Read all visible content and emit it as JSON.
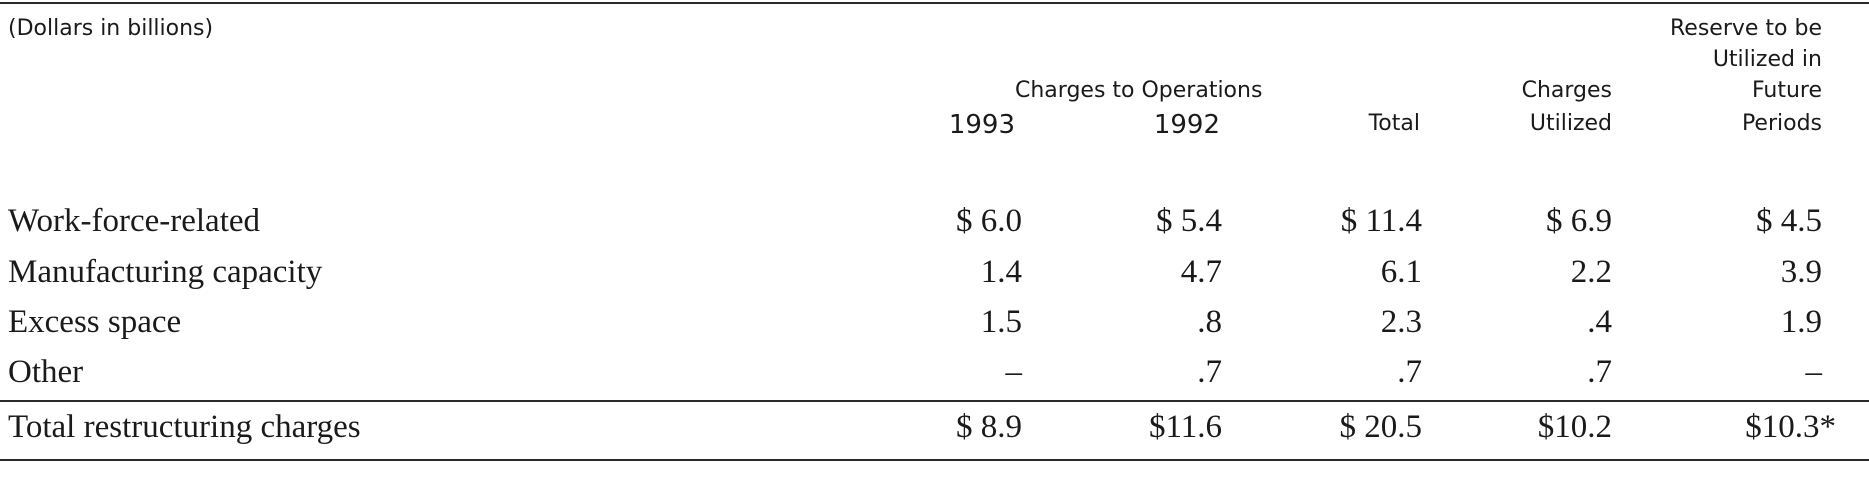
{
  "table": {
    "units_label": "(Dollars in billions)",
    "group_header": "Charges to Operations",
    "columns": {
      "c1993": "1993",
      "c1992": "1992",
      "total": "Total",
      "utilized_line1": "Charges",
      "utilized_line2": "Utilized",
      "reserve_line1": "Reserve to be",
      "reserve_line2": "Utilized in",
      "reserve_line3": "Future",
      "reserve_line4": "Periods"
    },
    "rows": [
      {
        "label": "Work-force-related",
        "c1993": "$ 6.0",
        "c1992": "$ 5.4",
        "total": "$ 11.4",
        "utilized": "$ 6.9",
        "reserve": "$ 4.5"
      },
      {
        "label": "Manufacturing capacity",
        "c1993": "1.4",
        "c1992": "4.7",
        "total": "6.1",
        "utilized": "2.2",
        "reserve": "3.9"
      },
      {
        "label": "Excess space",
        "c1993": "1.5",
        "c1992": ".8",
        "total": "2.3",
        "utilized": ".4",
        "reserve": "1.9"
      },
      {
        "label": "Other",
        "c1993": "–",
        "c1992": ".7",
        "total": ".7",
        "utilized": ".7",
        "reserve": "–"
      }
    ],
    "total_row": {
      "label": "Total restructuring charges",
      "c1993": "$ 8.9",
      "c1992": "$11.6",
      "total": "$ 20.5",
      "utilized": "$10.2",
      "reserve": "$10.3*"
    }
  }
}
